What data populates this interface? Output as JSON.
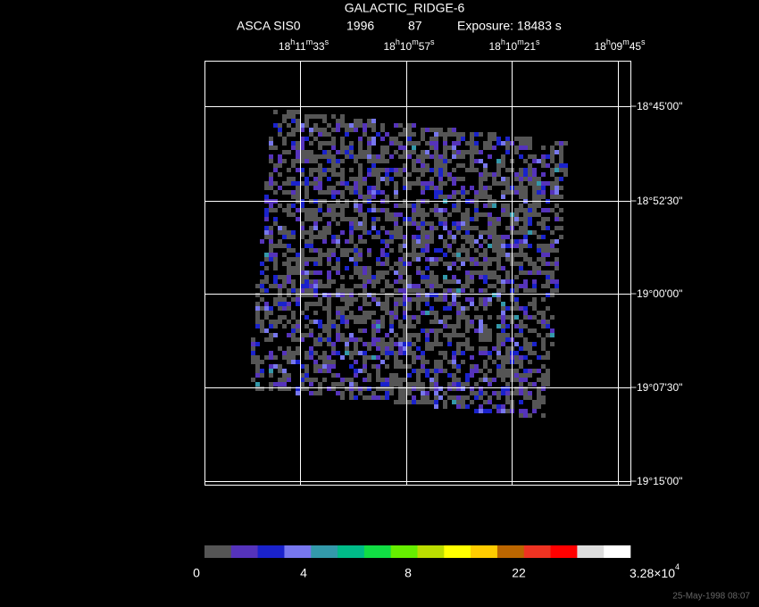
{
  "header": {
    "title": "GALACTIC_RIDGE-6",
    "instrument": "ASCA SIS0",
    "year": "1996",
    "day": "87",
    "exposure": "Exposure: 18483 s"
  },
  "ra_labels": [
    [
      "18",
      "h",
      "11",
      "m",
      "33",
      "s"
    ],
    [
      "18",
      "h",
      "10",
      "m",
      "57",
      "s"
    ],
    [
      "18",
      "h",
      "10",
      "m",
      "21",
      "s"
    ],
    [
      "18",
      "h",
      "09",
      "m",
      "45",
      "s"
    ]
  ],
  "dec_labels": [
    "−18°45'00\"",
    "−18°52'30\"",
    "−19°00'00\"",
    "−19°07'30\"",
    "−19°15'00\""
  ],
  "colorbar_labels": [
    "0",
    "4",
    "8",
    "22"
  ],
  "colorbar_max": {
    "mantissa": "3.28×10",
    "exponent": "4"
  },
  "footer": "25-May-1998 08:07"
}
